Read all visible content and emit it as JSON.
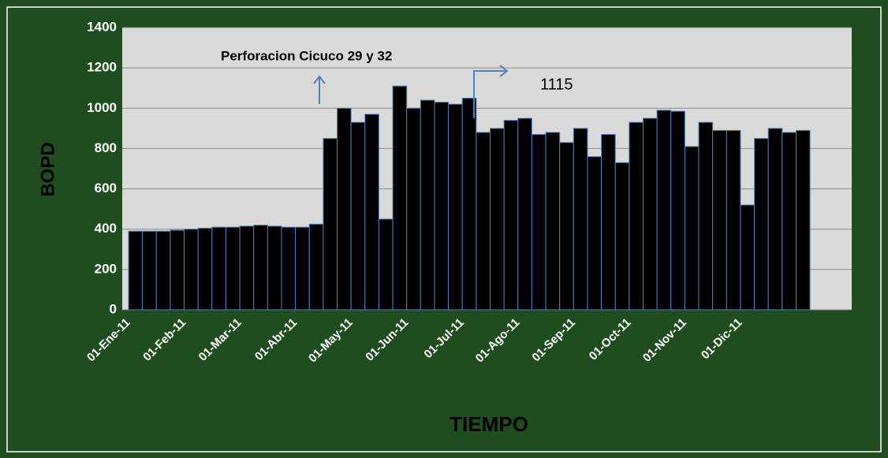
{
  "chart_data": {
    "type": "bar",
    "xlabel": "TIEMPO",
    "ylabel": "BOPD",
    "annotations": [
      "Perforacion Cicuco 29 y 32",
      "1115"
    ],
    "categories": [
      "01-Ene-11",
      null,
      null,
      null,
      "01-Feb-11",
      null,
      null,
      null,
      "01-Mar-11",
      null,
      null,
      null,
      "01-Abr-11",
      null,
      null,
      null,
      "01-May-11",
      null,
      null,
      null,
      "01-Jun-11",
      null,
      null,
      null,
      "01-Jul-11",
      null,
      null,
      null,
      "01-Ago-11",
      null,
      null,
      null,
      "01-Sep-11",
      null,
      null,
      null,
      "01-Oct-11",
      null,
      null,
      null,
      "01-Nov-11",
      null,
      null,
      null,
      "01-Dic-11",
      null,
      null,
      null,
      null,
      null,
      null,
      null
    ],
    "values": [
      390,
      390,
      390,
      395,
      400,
      405,
      410,
      410,
      415,
      420,
      415,
      410,
      410,
      425,
      850,
      1000,
      930,
      970,
      450,
      1110,
      1000,
      1040,
      1030,
      1020,
      1050,
      880,
      900,
      940,
      950,
      870,
      880,
      830,
      900,
      760,
      870,
      730,
      930,
      950,
      990,
      985,
      810,
      930,
      890,
      890,
      520,
      850,
      900,
      880,
      890,
      0,
      0,
      0
    ],
    "color": "#000000",
    "edge_color": "#4f81bd",
    "ylim": [
      0,
      1400
    ],
    "yticks": [
      0,
      200,
      400,
      600,
      800,
      1000,
      1200,
      1400
    ],
    "grid": true
  }
}
